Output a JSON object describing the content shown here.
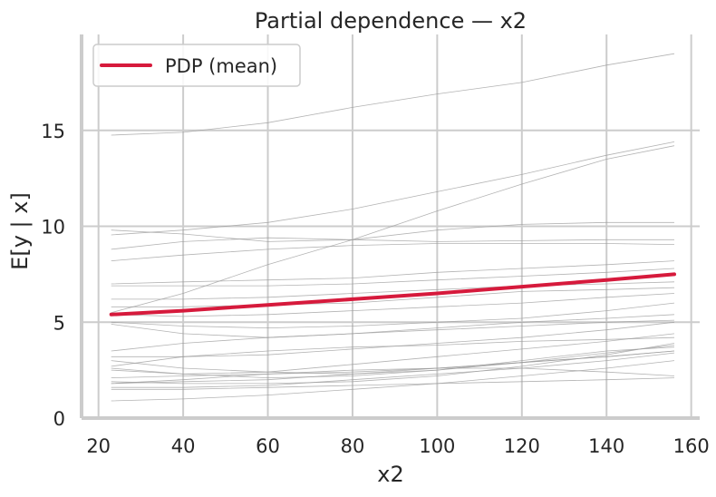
{
  "chart_data": {
    "type": "line",
    "title": "Partial dependence — x2",
    "xlabel": "x2",
    "ylabel": "E[y | x]",
    "xlim": [
      16,
      162
    ],
    "ylim": [
      0,
      20
    ],
    "xticks": [
      20,
      40,
      60,
      80,
      100,
      120,
      140,
      160
    ],
    "xtick_labels": [
      "20",
      "40",
      "60",
      "80",
      "100",
      "120",
      "140",
      "160"
    ],
    "yticks": [
      0,
      5,
      10,
      15
    ],
    "ytick_labels": [
      "0",
      "5",
      "10",
      "15"
    ],
    "grid": true,
    "legend": {
      "position": "top-left",
      "entries": [
        {
          "label": "PDP (mean)",
          "color": "#d61a3c"
        }
      ]
    },
    "x": [
      23,
      40,
      60,
      80,
      100,
      120,
      140,
      156
    ],
    "mean_series": {
      "name": "PDP (mean)",
      "color": "#d61a3c",
      "values": [
        5.4,
        5.6,
        5.9,
        6.2,
        6.5,
        6.85,
        7.2,
        7.5
      ]
    },
    "ice_color": "#9a9a9a",
    "ice_curves": [
      [
        14.75,
        14.9,
        15.4,
        16.2,
        16.9,
        17.5,
        18.4,
        19.0
      ],
      [
        9.55,
        9.8,
        10.2,
        10.9,
        11.8,
        12.7,
        13.7,
        14.4
      ],
      [
        9.8,
        9.6,
        9.2,
        9.3,
        9.8,
        10.1,
        10.2,
        10.2
      ],
      [
        8.8,
        9.2,
        9.4,
        9.3,
        9.2,
        9.25,
        9.3,
        9.3
      ],
      [
        8.2,
        8.5,
        8.8,
        9.0,
        9.1,
        9.1,
        9.1,
        9.05
      ],
      [
        5.5,
        6.5,
        8.0,
        9.3,
        10.8,
        12.2,
        13.5,
        14.2
      ],
      [
        7.0,
        7.1,
        7.2,
        7.3,
        7.6,
        7.8,
        8.0,
        8.2
      ],
      [
        6.9,
        6.9,
        6.9,
        7.0,
        7.2,
        7.4,
        7.6,
        7.8
      ],
      [
        6.2,
        6.2,
        6.3,
        6.5,
        6.7,
        6.9,
        7.0,
        7.1
      ],
      [
        5.8,
        5.8,
        5.9,
        6.0,
        6.3,
        6.6,
        6.7,
        6.8
      ],
      [
        5.4,
        5.3,
        5.4,
        5.6,
        5.8,
        6.0,
        6.3,
        6.5
      ],
      [
        5.0,
        4.8,
        4.7,
        4.8,
        5.0,
        5.2,
        5.6,
        6.0
      ],
      [
        4.9,
        4.4,
        4.2,
        4.4,
        4.7,
        5.0,
        5.2,
        5.4
      ],
      [
        3.5,
        3.9,
        4.2,
        4.4,
        4.6,
        4.8,
        5.0,
        5.1
      ],
      [
        3.2,
        3.2,
        3.3,
        3.6,
        3.9,
        4.2,
        4.6,
        5.0
      ],
      [
        2.7,
        3.2,
        3.5,
        3.7,
        3.8,
        4.0,
        4.1,
        4.2
      ],
      [
        3.0,
        2.6,
        2.4,
        2.3,
        2.5,
        2.9,
        3.4,
        3.8
      ],
      [
        2.6,
        2.3,
        2.1,
        2.2,
        2.5,
        3.0,
        3.5,
        3.7
      ],
      [
        2.5,
        2.3,
        2.4,
        2.8,
        3.2,
        3.6,
        4.0,
        4.4
      ],
      [
        1.8,
        1.9,
        2.0,
        2.3,
        2.6,
        2.9,
        3.2,
        3.5
      ],
      [
        1.6,
        1.6,
        1.7,
        2.0,
        2.3,
        2.6,
        3.0,
        3.4
      ],
      [
        1.5,
        1.5,
        1.6,
        1.7,
        1.8,
        1.9,
        2.0,
        2.1
      ],
      [
        0.9,
        1.0,
        1.2,
        1.5,
        1.8,
        2.2,
        2.6,
        3.0
      ],
      [
        1.8,
        2.0,
        2.3,
        2.5,
        2.6,
        2.6,
        2.4,
        2.2
      ],
      [
        1.9,
        1.8,
        1.8,
        1.9,
        2.2,
        2.7,
        3.3,
        3.9
      ],
      [
        2.1,
        2.2,
        2.3,
        2.4,
        2.6,
        2.9,
        3.2,
        3.5
      ]
    ]
  }
}
